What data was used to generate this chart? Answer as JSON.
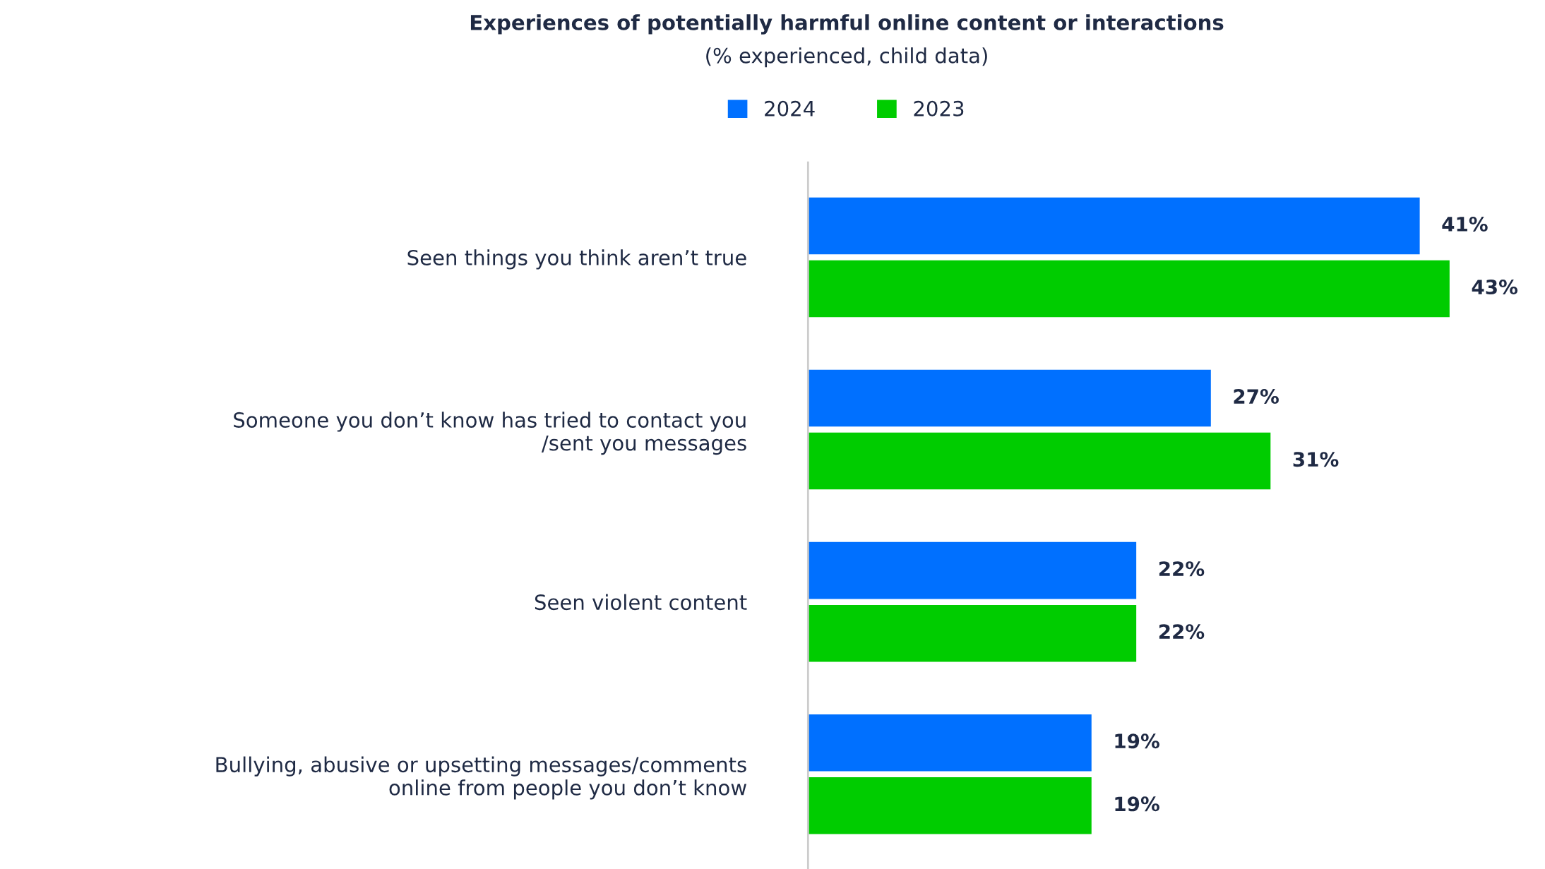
{
  "chart_data": {
    "type": "bar",
    "orientation": "horizontal",
    "title": "Experiences of potentially harmful online content or interactions",
    "subtitle": "(% experienced, child data)",
    "categories": [
      "Seen things you think aren’t true",
      "Someone you don’t know has tried to contact you\n/sent you messages",
      "Seen violent content",
      "Bullying, abusive or upsetting messages/comments\nonline from people you don’t know"
    ],
    "series": [
      {
        "name": "2024",
        "color": "#0070ff",
        "values": [
          41,
          27,
          22,
          19
        ],
        "value_labels": [
          "41%",
          "27%",
          "22%",
          "19%"
        ]
      },
      {
        "name": "2023",
        "color": "#00cc00",
        "values": [
          43,
          31,
          22,
          19
        ],
        "value_labels": [
          "43%",
          "31%",
          "22%",
          "19%"
        ]
      }
    ],
    "tick_labels": "y",
    "legend": "top",
    "grid": false
  }
}
